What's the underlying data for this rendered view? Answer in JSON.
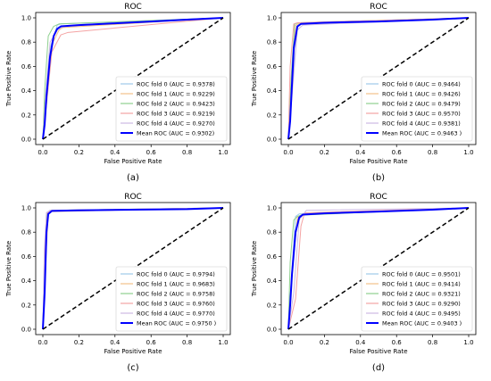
{
  "chart_data": [
    {
      "type": "line",
      "title": "ROC",
      "xlabel": "False Positive Rate",
      "ylabel": "True Positive Rate",
      "xlim": [
        0.0,
        1.0
      ],
      "ylim": [
        0.0,
        1.0
      ],
      "xticks": [
        "0.0",
        "0.2",
        "0.4",
        "0.6",
        "0.8",
        "1.0"
      ],
      "yticks": [
        "0.0",
        "0.2",
        "0.4",
        "0.6",
        "0.8",
        "1.0"
      ],
      "grid": false,
      "legend_position": "bottom-right",
      "caption": "(a)",
      "series": [
        {
          "name": "ROC fold 0 (AUC = 0.9378)",
          "color": "#9ec9e8",
          "x": [
            0,
            0.01,
            0.04,
            0.08,
            0.1,
            1
          ],
          "y": [
            0,
            0.25,
            0.75,
            0.94,
            0.95,
            1
          ]
        },
        {
          "name": "ROC fold 1 (AUC = 0.9229)",
          "color": "#f4c08a",
          "x": [
            0,
            0.02,
            0.05,
            0.09,
            0.11,
            1
          ],
          "y": [
            0,
            0.3,
            0.78,
            0.9,
            0.92,
            1
          ]
        },
        {
          "name": "ROC fold 2 (AUC = 0.9423)",
          "color": "#8fd08f",
          "x": [
            0,
            0.01,
            0.03,
            0.06,
            0.09,
            1
          ],
          "y": [
            0,
            0.4,
            0.85,
            0.93,
            0.95,
            1
          ]
        },
        {
          "name": "ROC fold 3 (AUC = 0.9219)",
          "color": "#f4a3a3",
          "x": [
            0,
            0.02,
            0.05,
            0.1,
            0.14,
            1
          ],
          "y": [
            0,
            0.28,
            0.72,
            0.86,
            0.88,
            1
          ]
        },
        {
          "name": "ROC fold 4 (AUC = 0.9270)",
          "color": "#cdb9e3",
          "x": [
            0,
            0.015,
            0.04,
            0.08,
            0.11,
            1
          ],
          "y": [
            0,
            0.35,
            0.8,
            0.9,
            0.93,
            1
          ]
        },
        {
          "name": "Mean ROC (AUC = 0.9302)",
          "color": "#0000ff",
          "width": 2,
          "x": [
            0,
            0.01,
            0.02,
            0.04,
            0.06,
            0.08,
            0.1,
            0.2,
            0.4,
            0.6,
            0.8,
            1
          ],
          "y": [
            0,
            0.12,
            0.35,
            0.68,
            0.85,
            0.91,
            0.93,
            0.94,
            0.955,
            0.97,
            0.985,
            1
          ]
        },
        {
          "name": "",
          "color": "#000000",
          "dashed": true,
          "x": [
            0,
            1
          ],
          "y": [
            0,
            1
          ]
        }
      ]
    },
    {
      "type": "line",
      "title": "ROC",
      "xlabel": "False Positive Rate",
      "ylabel": "True Positive Rate",
      "xlim": [
        0.0,
        1.0
      ],
      "ylim": [
        0.0,
        1.0
      ],
      "xticks": [
        "0.0",
        "0.2",
        "0.4",
        "0.6",
        "0.8",
        "1.0"
      ],
      "yticks": [
        "0.0",
        "0.2",
        "0.4",
        "0.6",
        "0.8",
        "1.0"
      ],
      "grid": false,
      "legend_position": "bottom-right",
      "caption": "(b)",
      "series": [
        {
          "name": "ROC fold 0 (AUC = 0.9464)",
          "color": "#9ec9e8",
          "x": [
            0,
            0.02,
            0.05,
            0.07,
            1
          ],
          "y": [
            0,
            0.4,
            0.92,
            0.95,
            1
          ]
        },
        {
          "name": "ROC fold 1 (AUC = 0.9426)",
          "color": "#f4c08a",
          "x": [
            0,
            0.02,
            0.04,
            0.07,
            1
          ],
          "y": [
            0,
            0.5,
            0.94,
            0.96,
            1
          ]
        },
        {
          "name": "ROC fold 2 (AUC = 0.9479)",
          "color": "#8fd08f",
          "x": [
            0,
            0.015,
            0.035,
            0.06,
            1
          ],
          "y": [
            0,
            0.5,
            0.95,
            0.96,
            1
          ]
        },
        {
          "name": "ROC fold 3 (AUC = 0.9570)",
          "color": "#f4a3a3",
          "x": [
            0,
            0.01,
            0.03,
            0.05,
            1
          ],
          "y": [
            0,
            0.6,
            0.95,
            0.96,
            1
          ]
        },
        {
          "name": "ROC fold 4 (AUC = 0.9381)",
          "color": "#cdb9e3",
          "x": [
            0,
            0.02,
            0.05,
            0.08,
            1
          ],
          "y": [
            0,
            0.35,
            0.9,
            0.94,
            1
          ]
        },
        {
          "name": "Mean ROC (AUC = 0.9463 )",
          "color": "#0000ff",
          "width": 2,
          "x": [
            0,
            0.01,
            0.02,
            0.03,
            0.05,
            0.07,
            0.2,
            0.5,
            0.8,
            1
          ],
          "y": [
            0,
            0.15,
            0.45,
            0.75,
            0.93,
            0.95,
            0.96,
            0.97,
            0.985,
            1
          ]
        },
        {
          "name": "",
          "color": "#000000",
          "dashed": true,
          "x": [
            0,
            1
          ],
          "y": [
            0,
            1
          ]
        }
      ]
    },
    {
      "type": "line",
      "title": "ROC",
      "xlabel": "False Positive Rate",
      "ylabel": "True Positive Rate",
      "xlim": [
        0.0,
        1.0
      ],
      "ylim": [
        0.0,
        1.0
      ],
      "xticks": [
        "0.0",
        "0.2",
        "0.4",
        "0.6",
        "0.8",
        "1.0"
      ],
      "yticks": [
        "0.0",
        "0.2",
        "0.4",
        "0.6",
        "0.8",
        "1.0"
      ],
      "grid": false,
      "legend_position": "bottom-right",
      "caption": "(c)",
      "series": [
        {
          "name": "ROC fold 0 (AUC = 0.9794)",
          "color": "#9ec9e8",
          "x": [
            0,
            0.01,
            0.02,
            0.04,
            1
          ],
          "y": [
            0,
            0.6,
            0.96,
            0.98,
            1
          ]
        },
        {
          "name": "ROC fold 1 (AUC = 0.9683)",
          "color": "#f4c08a",
          "x": [
            0,
            0.015,
            0.03,
            0.05,
            1
          ],
          "y": [
            0,
            0.55,
            0.95,
            0.97,
            1
          ]
        },
        {
          "name": "ROC fold 2 (AUC = 0.9758)",
          "color": "#8fd08f",
          "x": [
            0,
            0.01,
            0.025,
            0.04,
            1
          ],
          "y": [
            0,
            0.6,
            0.96,
            0.98,
            1
          ]
        },
        {
          "name": "ROC fold 3 (AUC = 0.9760)",
          "color": "#f4a3a3",
          "x": [
            0,
            0.01,
            0.02,
            0.045,
            1
          ],
          "y": [
            0,
            0.58,
            0.95,
            0.98,
            1
          ]
        },
        {
          "name": "ROC fold 4 (AUC = 0.9770)",
          "color": "#cdb9e3",
          "x": [
            0,
            0.008,
            0.02,
            0.04,
            1
          ],
          "y": [
            0,
            0.65,
            0.96,
            0.98,
            1
          ]
        },
        {
          "name": "Mean ROC (AUC = 0.9750 )",
          "color": "#0000ff",
          "width": 2,
          "x": [
            0,
            0.01,
            0.02,
            0.03,
            0.05,
            0.2,
            0.5,
            0.8,
            1
          ],
          "y": [
            0,
            0.3,
            0.8,
            0.95,
            0.975,
            0.98,
            0.985,
            0.99,
            1
          ]
        },
        {
          "name": "",
          "color": "#000000",
          "dashed": true,
          "x": [
            0,
            1
          ],
          "y": [
            0,
            1
          ]
        }
      ]
    },
    {
      "type": "line",
      "title": "ROC",
      "xlabel": "False Positive Rate",
      "ylabel": "True Positive Rate",
      "xlim": [
        0.0,
        1.0
      ],
      "ylim": [
        0.0,
        1.0
      ],
      "xticks": [
        "0.0",
        "0.2",
        "0.4",
        "0.6",
        "0.8",
        "1.0"
      ],
      "yticks": [
        "0.0",
        "0.2",
        "0.4",
        "0.6",
        "0.8",
        "1.0"
      ],
      "grid": false,
      "legend_position": "bottom-right",
      "caption": "(d)",
      "series": [
        {
          "name": "ROC fold 0 (AUC = 0.9501)",
          "color": "#9ec9e8",
          "x": [
            0,
            0.02,
            0.04,
            0.06,
            1
          ],
          "y": [
            0,
            0.5,
            0.93,
            0.95,
            1
          ]
        },
        {
          "name": "ROC fold 1 (AUC = 0.9414)",
          "color": "#f4c08a",
          "x": [
            0,
            0.02,
            0.05,
            0.08,
            1
          ],
          "y": [
            0,
            0.45,
            0.92,
            0.95,
            1
          ]
        },
        {
          "name": "ROC fold 2 (AUC = 0.9321)",
          "color": "#8fd08f",
          "x": [
            0,
            0.01,
            0.03,
            0.05,
            0.07,
            1
          ],
          "y": [
            0,
            0.55,
            0.9,
            0.93,
            0.94,
            1
          ]
        },
        {
          "name": "ROC fold 3 (AUC = 0.9290)",
          "color": "#f4a3a3",
          "x": [
            0,
            0.04,
            0.07,
            0.09,
            1
          ],
          "y": [
            0,
            0.25,
            0.85,
            0.96,
            1
          ]
        },
        {
          "name": "ROC fold 4 (AUC = 0.9495)",
          "color": "#cdb9e3",
          "x": [
            0,
            0.03,
            0.06,
            0.1,
            1
          ],
          "y": [
            0,
            0.3,
            0.9,
            0.98,
            1
          ]
        },
        {
          "name": "Mean ROC (AUC = 0.9403 )",
          "color": "#0000ff",
          "width": 2,
          "x": [
            0,
            0.01,
            0.02,
            0.04,
            0.06,
            0.08,
            0.2,
            0.5,
            0.8,
            1
          ],
          "y": [
            0,
            0.2,
            0.45,
            0.8,
            0.92,
            0.945,
            0.955,
            0.97,
            0.985,
            1
          ]
        },
        {
          "name": "",
          "color": "#000000",
          "dashed": true,
          "x": [
            0,
            1
          ],
          "y": [
            0,
            1
          ]
        }
      ]
    }
  ]
}
